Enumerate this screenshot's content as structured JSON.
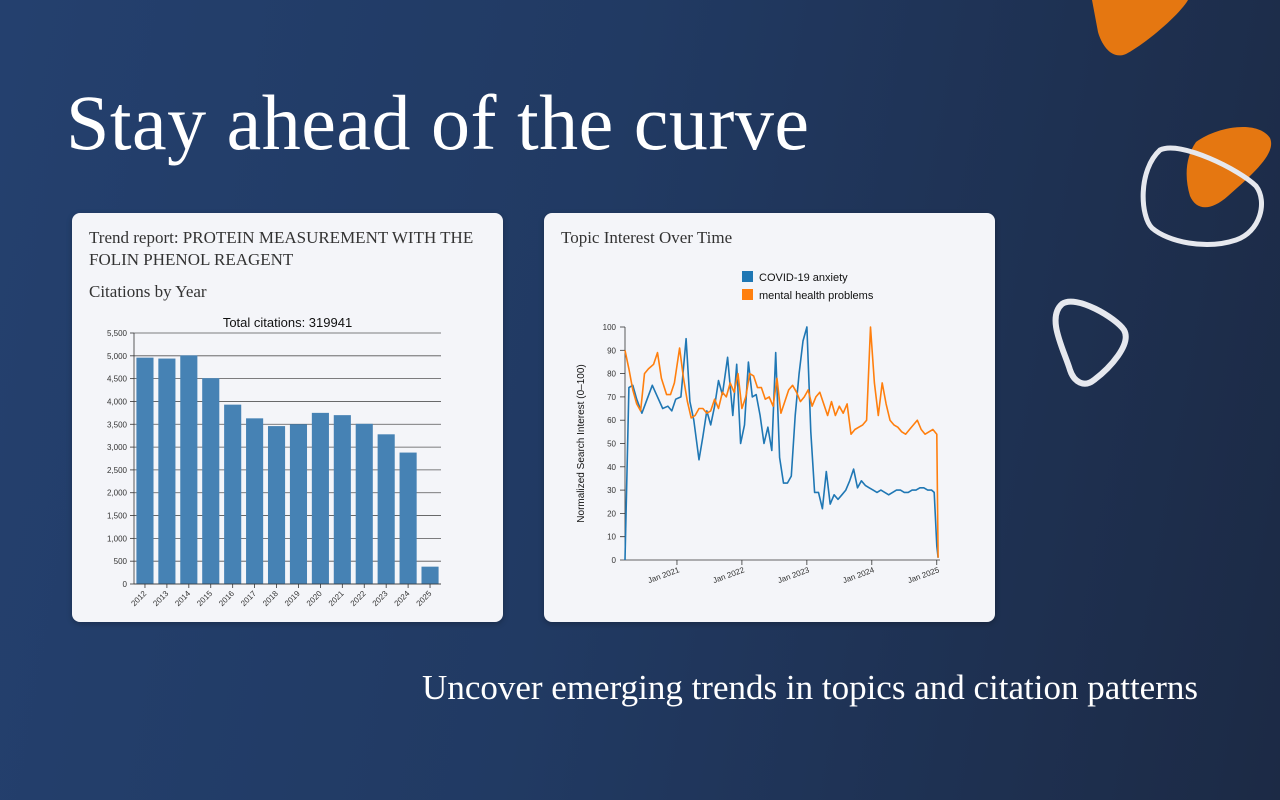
{
  "hero": {
    "headline": "Stay ahead of the curve",
    "tagline": "Uncover emerging trends in topics and citation patterns"
  },
  "colors": {
    "accent_orange": "#e57711",
    "bar_blue": "#4682b4",
    "series_blue": "#1f77b4",
    "series_orange": "#ff7f0e"
  },
  "citation_card": {
    "title": "Trend report: PROTEIN MEASUREMENT WITH THE FOLIN PHENOL REAGENT",
    "subtitle": "Citations by Year"
  },
  "topic_card": {
    "title": "Topic Interest Over Time"
  },
  "chart_data": [
    {
      "type": "bar",
      "title": "Total citations: 319941",
      "categories": [
        "2012",
        "2013",
        "2014",
        "2015",
        "2016",
        "2017",
        "2018",
        "2019",
        "2020",
        "2021",
        "2022",
        "2023",
        "2024",
        "2025"
      ],
      "values": [
        4960,
        4940,
        5010,
        4510,
        3930,
        3630,
        3460,
        3500,
        3750,
        3700,
        3510,
        3280,
        2880,
        380
      ],
      "ylim": [
        0,
        5500
      ],
      "yticks": [
        "0",
        "500",
        "1,000",
        "1,500",
        "2,000",
        "2,500",
        "3,000",
        "3,500",
        "4,000",
        "4,500",
        "5,000",
        "5,500"
      ],
      "grid": true
    },
    {
      "type": "line",
      "ylabel": "Normalized Search Interest (0–100)",
      "ylim": [
        0,
        100
      ],
      "yticks": [
        "0",
        "10",
        "20",
        "30",
        "40",
        "50",
        "60",
        "70",
        "80",
        "90",
        "100"
      ],
      "xticks": [
        {
          "label": "Jan 2021",
          "x": 2021.0
        },
        {
          "label": "Jan 2022",
          "x": 2022.0
        },
        {
          "label": "Jan 2023",
          "x": 2023.0
        },
        {
          "label": "Jan 2024",
          "x": 2024.0
        },
        {
          "label": "Jan 2025",
          "x": 2025.0
        }
      ],
      "xlim": [
        2020.2,
        2025.05
      ],
      "legend_position": "top-center",
      "series": [
        {
          "name": "COVID-19 anxiety",
          "color": "#1f77b4",
          "x": [
            2020.2,
            2020.26,
            2020.32,
            2020.38,
            2020.46,
            2020.54,
            2020.62,
            2020.7,
            2020.78,
            2020.86,
            2020.92,
            2020.98,
            2021.06,
            2021.14,
            2021.2,
            2021.26,
            2021.34,
            2021.4,
            2021.46,
            2021.52,
            2021.58,
            2021.64,
            2021.7,
            2021.78,
            2021.86,
            2021.92,
            2021.98,
            2022.04,
            2022.1,
            2022.16,
            2022.22,
            2022.28,
            2022.34,
            2022.4,
            2022.46,
            2022.52,
            2022.58,
            2022.64,
            2022.7,
            2022.76,
            2022.82,
            2022.88,
            2022.94,
            2023.0,
            2023.06,
            2023.12,
            2023.18,
            2023.24,
            2023.3,
            2023.36,
            2023.42,
            2023.48,
            2023.54,
            2023.6,
            2023.66,
            2023.72,
            2023.78,
            2023.84,
            2023.9,
            2023.96,
            2024.02,
            2024.08,
            2024.14,
            2024.2,
            2024.26,
            2024.32,
            2024.38,
            2024.44,
            2024.5,
            2024.56,
            2024.62,
            2024.68,
            2024.74,
            2024.8,
            2024.86,
            2024.92,
            2024.96,
            2025.0,
            2025.02
          ],
          "y": [
            0,
            74,
            75,
            69,
            63,
            69,
            75,
            70,
            65,
            66,
            64,
            69,
            70,
            95,
            68,
            60,
            43,
            53,
            64,
            58,
            66,
            77,
            71,
            87,
            62,
            84,
            50,
            58,
            85,
            70,
            71,
            62,
            50,
            57,
            47,
            89,
            44,
            33,
            33,
            36,
            62,
            80,
            94,
            100,
            55,
            29,
            29,
            22,
            38,
            24,
            28,
            26,
            28,
            30,
            34,
            39,
            31,
            34,
            32,
            31,
            30,
            29,
            30,
            29,
            28,
            29,
            30,
            30,
            29,
            29,
            30,
            30,
            31,
            31,
            30,
            30,
            29,
            6,
            1
          ]
        },
        {
          "name": "mental health problems",
          "color": "#ff7f0e",
          "x": [
            2020.2,
            2020.26,
            2020.32,
            2020.38,
            2020.44,
            2020.5,
            2020.56,
            2020.64,
            2020.7,
            2020.76,
            2020.84,
            2020.9,
            2020.96,
            2021.04,
            2021.1,
            2021.16,
            2021.22,
            2021.28,
            2021.34,
            2021.4,
            2021.46,
            2021.52,
            2021.58,
            2021.64,
            2021.7,
            2021.76,
            2021.82,
            2021.88,
            2021.94,
            2022.0,
            2022.06,
            2022.12,
            2022.18,
            2022.24,
            2022.3,
            2022.36,
            2022.42,
            2022.48,
            2022.54,
            2022.6,
            2022.66,
            2022.72,
            2022.78,
            2022.84,
            2022.9,
            2022.96,
            2023.02,
            2023.08,
            2023.14,
            2023.2,
            2023.26,
            2023.32,
            2023.38,
            2023.44,
            2023.5,
            2023.56,
            2023.62,
            2023.68,
            2023.74,
            2023.8,
            2023.86,
            2023.92,
            2023.98,
            2024.04,
            2024.1,
            2024.16,
            2024.22,
            2024.28,
            2024.34,
            2024.4,
            2024.46,
            2024.52,
            2024.58,
            2024.64,
            2024.7,
            2024.76,
            2024.82,
            2024.88,
            2024.94,
            2025.0,
            2025.02
          ],
          "y": [
            90,
            82,
            73,
            67,
            64,
            80,
            82,
            84,
            89,
            78,
            71,
            71,
            76,
            91,
            78,
            68,
            61,
            62,
            65,
            65,
            63,
            64,
            69,
            65,
            72,
            70,
            76,
            72,
            80,
            65,
            70,
            80,
            79,
            74,
            74,
            69,
            70,
            66,
            78,
            63,
            68,
            73,
            75,
            72,
            68,
            70,
            73,
            66,
            70,
            72,
            67,
            62,
            68,
            62,
            66,
            63,
            67,
            54,
            56,
            57,
            58,
            60,
            100,
            76,
            62,
            76,
            67,
            60,
            58,
            57,
            55,
            54,
            56,
            58,
            60,
            56,
            54,
            55,
            56,
            54,
            1
          ]
        }
      ]
    }
  ]
}
